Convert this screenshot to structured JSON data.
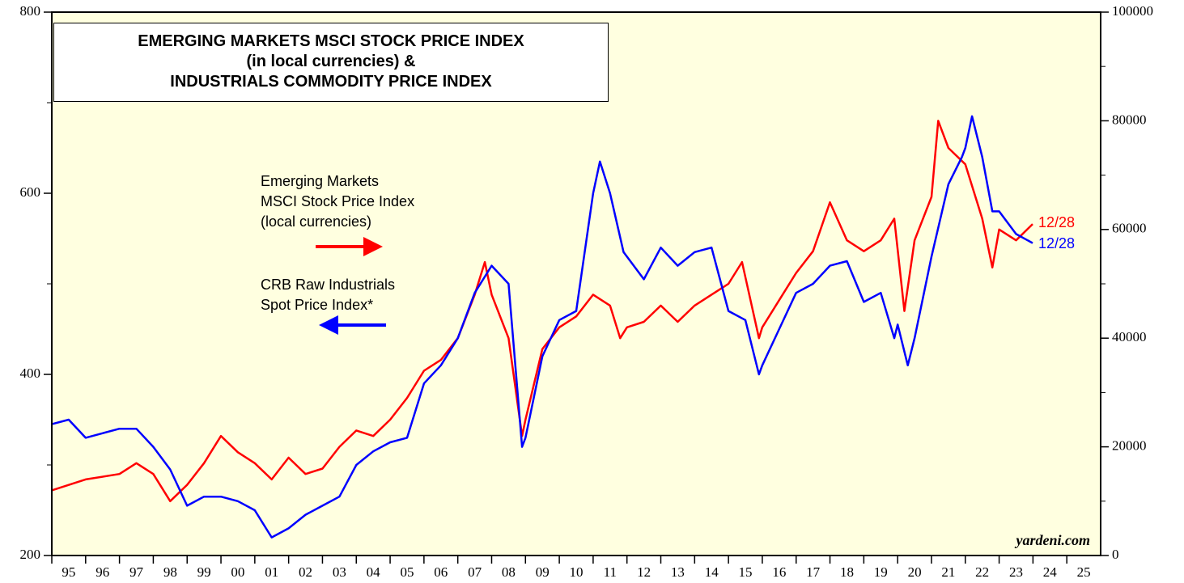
{
  "chart_data": {
    "type": "line",
    "title": "EMERGING MARKETS MSCI STOCK PRICE INDEX\n(in local currencies) &\nINDUSTRIALS COMMODITY PRICE INDEX",
    "xlim": [
      1995,
      2026
    ],
    "xticks": [
      {
        "value": 1995.5,
        "label": "95"
      },
      {
        "value": 1996.5,
        "label": "96"
      },
      {
        "value": 1997.5,
        "label": "97"
      },
      {
        "value": 1998.5,
        "label": "98"
      },
      {
        "value": 1999.5,
        "label": "99"
      },
      {
        "value": 2000.5,
        "label": "00"
      },
      {
        "value": 2001.5,
        "label": "01"
      },
      {
        "value": 2002.5,
        "label": "02"
      },
      {
        "value": 2003.5,
        "label": "03"
      },
      {
        "value": 2004.5,
        "label": "04"
      },
      {
        "value": 2005.5,
        "label": "05"
      },
      {
        "value": 2006.5,
        "label": "06"
      },
      {
        "value": 2007.5,
        "label": "07"
      },
      {
        "value": 2008.5,
        "label": "08"
      },
      {
        "value": 2009.5,
        "label": "09"
      },
      {
        "value": 2010.5,
        "label": "10"
      },
      {
        "value": 2011.5,
        "label": "11"
      },
      {
        "value": 2012.5,
        "label": "12"
      },
      {
        "value": 2013.5,
        "label": "13"
      },
      {
        "value": 2014.5,
        "label": "14"
      },
      {
        "value": 2015.5,
        "label": "15"
      },
      {
        "value": 2016.5,
        "label": "16"
      },
      {
        "value": 2017.5,
        "label": "17"
      },
      {
        "value": 2018.5,
        "label": "18"
      },
      {
        "value": 2019.5,
        "label": "19"
      },
      {
        "value": 2020.5,
        "label": "20"
      },
      {
        "value": 2021.5,
        "label": "21"
      },
      {
        "value": 2022.5,
        "label": "22"
      },
      {
        "value": 2023.5,
        "label": "23"
      },
      {
        "value": 2024.5,
        "label": "24"
      },
      {
        "value": 2025.5,
        "label": "25"
      }
    ],
    "ylim": [
      200,
      800
    ],
    "yticks": [
      200,
      400,
      600,
      800
    ],
    "y2lim": [
      0,
      100000
    ],
    "y2ticks": [
      0,
      20000,
      40000,
      60000,
      80000,
      100000
    ],
    "background": "#ffffe0",
    "series": [
      {
        "name": "Emerging Markets\nMSCI Stock Price Index\n(local currencies)",
        "color": "#ff0000",
        "axis": "y2",
        "x": [
          1995,
          1996,
          1997,
          1997.5,
          1998,
          1998.5,
          1999,
          1999.5,
          2000,
          2000.5,
          2001,
          2001.5,
          2002,
          2002.5,
          2003,
          2003.5,
          2004,
          2004.5,
          2005,
          2005.5,
          2006,
          2006.5,
          2007,
          2007.5,
          2007.8,
          2008,
          2008.5,
          2008.9,
          2009,
          2009.5,
          2010,
          2010.5,
          2011,
          2011.5,
          2011.8,
          2012,
          2012.5,
          2013,
          2013.5,
          2014,
          2014.5,
          2015,
          2015.4,
          2015.9,
          2016,
          2016.5,
          2017,
          2017.5,
          2018,
          2018.5,
          2019,
          2019.5,
          2019.9,
          2020.2,
          2020.5,
          2021,
          2021.2,
          2021.5,
          2022,
          2022.5,
          2022.8,
          2023,
          2023.5,
          2023.99
        ],
        "values": [
          12000,
          14000,
          15000,
          17000,
          15000,
          10000,
          13000,
          17000,
          22000,
          19000,
          17000,
          14000,
          18000,
          15000,
          16000,
          20000,
          23000,
          22000,
          25000,
          29000,
          34000,
          36000,
          40000,
          48000,
          54000,
          48000,
          40000,
          22000,
          25000,
          38000,
          42000,
          44000,
          48000,
          46000,
          40000,
          42000,
          43000,
          46000,
          43000,
          46000,
          48000,
          50000,
          54000,
          40000,
          42000,
          47000,
          52000,
          56000,
          65000,
          58000,
          56000,
          58000,
          62000,
          45000,
          58000,
          66000,
          80000,
          75000,
          72000,
          62000,
          53000,
          60000,
          58000,
          61000
        ],
        "end_label": "12/28"
      },
      {
        "name": "CRB Raw Industrials\nSpot Price Index*",
        "color": "#0000ff",
        "axis": "y",
        "x": [
          1995,
          1995.5,
          1996,
          1996.5,
          1997,
          1997.5,
          1998,
          1998.5,
          1999,
          1999.5,
          2000,
          2000.5,
          2001,
          2001.5,
          2002,
          2002.5,
          2003,
          2003.5,
          2004,
          2004.5,
          2005,
          2005.5,
          2006,
          2006.5,
          2007,
          2007.5,
          2008,
          2008.5,
          2008.9,
          2009,
          2009.5,
          2010,
          2010.5,
          2011,
          2011.2,
          2011.5,
          2011.9,
          2012,
          2012.5,
          2013,
          2013.5,
          2014,
          2014.5,
          2015,
          2015.5,
          2015.9,
          2016,
          2016.5,
          2017,
          2017.5,
          2018,
          2018.5,
          2019,
          2019.5,
          2019.9,
          2020,
          2020.3,
          2020.5,
          2021,
          2021.5,
          2021.9,
          2022,
          2022.2,
          2022.5,
          2022.8,
          2023,
          2023.5,
          2023.99
        ],
        "values": [
          345,
          350,
          330,
          335,
          340,
          340,
          320,
          295,
          255,
          265,
          265,
          260,
          250,
          220,
          230,
          245,
          255,
          265,
          300,
          315,
          325,
          330,
          390,
          410,
          440,
          490,
          520,
          500,
          320,
          330,
          420,
          460,
          470,
          600,
          635,
          600,
          535,
          530,
          505,
          540,
          520,
          535,
          540,
          470,
          460,
          400,
          410,
          450,
          490,
          500,
          520,
          525,
          480,
          490,
          440,
          455,
          410,
          440,
          530,
          610,
          640,
          650,
          685,
          640,
          580,
          580,
          555,
          545
        ],
        "end_label": "12/28"
      }
    ],
    "source": "yardeni.com"
  }
}
